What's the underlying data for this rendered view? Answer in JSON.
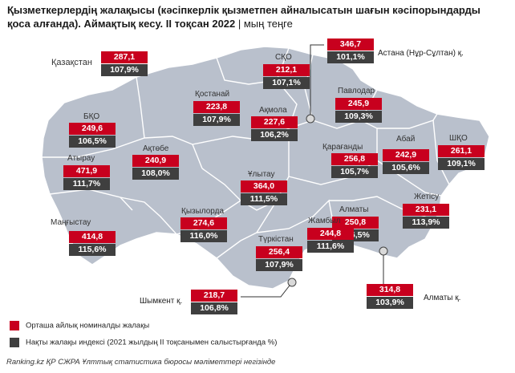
{
  "title": {
    "text": "Қызметкерлердің жалақысы (кәсіпкерлік қызметпен айналысатын шағын кәсіпорындарды қоса алғанда). Аймақтық кесу. II тоқсан 2022",
    "unit": " | мың теңге"
  },
  "colors": {
    "wage": "#c8001e",
    "index": "#3f3f3f",
    "map": "#b9c0cc",
    "border": "#ffffff"
  },
  "regions": {
    "kazakhstan": {
      "name": "Қазақстан",
      "wage": "287,1",
      "index": "107,9%"
    },
    "sko": {
      "name": "СҚО",
      "wage": "212,1",
      "index": "107,1%"
    },
    "astana": {
      "name": "Астана (Нұр-Сұлтан) қ.",
      "wage": "346,7",
      "index": "101,1%"
    },
    "pavlodar": {
      "name": "Павлодар",
      "wage": "245,9",
      "index": "109,3%"
    },
    "kostanay": {
      "name": "Қостанай",
      "wage": "223,8",
      "index": "107,9%"
    },
    "akmola": {
      "name": "Ақмола",
      "wage": "227,6",
      "index": "106,2%"
    },
    "bko": {
      "name": "БҚО",
      "wage": "249,6",
      "index": "106,5%"
    },
    "aktobe": {
      "name": "Ақтөбе",
      "wage": "240,9",
      "index": "108,0%"
    },
    "karaganda": {
      "name": "Қарағанды",
      "wage": "256,8",
      "index": "105,7%"
    },
    "abai": {
      "name": "Абай",
      "wage": "242,9",
      "index": "105,6%"
    },
    "vko": {
      "name": "ШҚО",
      "wage": "261,1",
      "index": "109,1%"
    },
    "atyrau": {
      "name": "Атырау",
      "wage": "471,9",
      "index": "111,7%"
    },
    "ulytau": {
      "name": "Ұлытау",
      "wage": "364,0",
      "index": "111,5%"
    },
    "kyzylorda": {
      "name": "Қызылорда",
      "wage": "274,6",
      "index": "116,0%"
    },
    "almaty_reg": {
      "name": "Алматы",
      "wage": "250,8",
      "index": "106,5%"
    },
    "zhetisu": {
      "name": "Жетісу",
      "wage": "231,1",
      "index": "113,9%"
    },
    "mangystau": {
      "name": "Маңғыстау",
      "wage": "414,8",
      "index": "115,6%"
    },
    "zhambyl": {
      "name": "Жамбыл",
      "wage": "244,8",
      "index": "111,6%"
    },
    "turkistan": {
      "name": "Түркістан",
      "wage": "256,4",
      "index": "107,9%"
    },
    "shymkent": {
      "name": "Шымкент қ.",
      "wage": "218,7",
      "index": "106,8%"
    },
    "almaty_city": {
      "name": "Алматы қ.",
      "wage": "314,8",
      "index": "103,9%"
    }
  },
  "legend": {
    "wage_label": "Орташа айлық номиналды жалақы",
    "index_label": "Нақты жалақы индексі (2021 жылдың II тоқсанымен салыстырғанда %)"
  },
  "source": "Ranking.kz ҚР СЖРА Ұлттық статистика бюросы мәліметтері негізінде"
}
